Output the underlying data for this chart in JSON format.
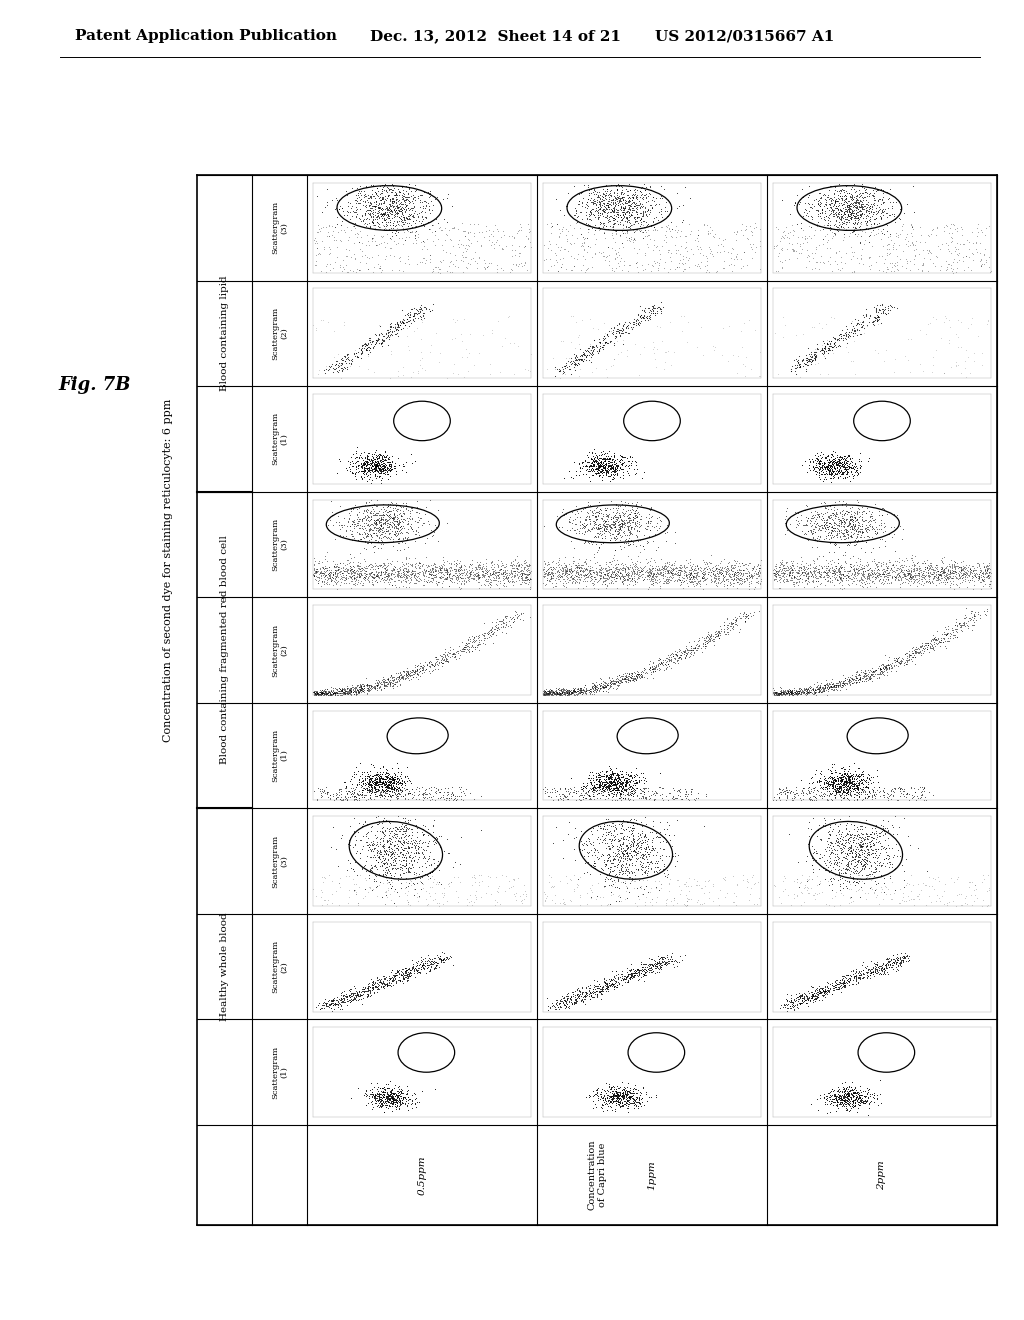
{
  "figure_label": "Fig. 7B",
  "header_line1": "Concentration of second dye for staining reticulocyte: 6 ppm",
  "patent_header": "Patent Application Publication",
  "patent_date": "Dec. 13, 2012  Sheet 14 of 21",
  "patent_number": "US 2012/0315667 A1",
  "row_labels": [
    "Concentration\nof Capri blue",
    "0.5ppm",
    "1ppm",
    "2ppm"
  ],
  "col_group1": "Healthy whole blood",
  "col_group2": "Blood containing fragmented red blood cell",
  "col_group3": "Blood containing lipid",
  "sub_col_labels": [
    "Scattergram\n(1)",
    "Scattergram\n(2)",
    "Scattergram\n(3)"
  ],
  "bg_color": "#ffffff",
  "seed": 42
}
